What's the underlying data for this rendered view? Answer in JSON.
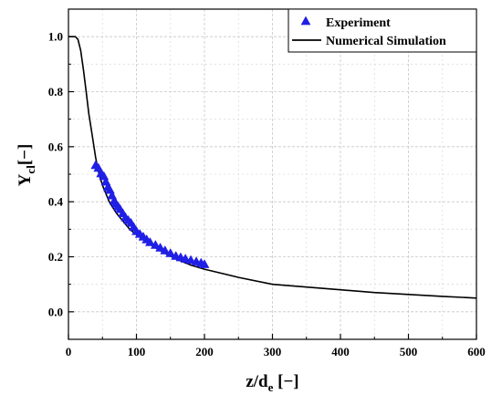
{
  "chart_data": {
    "type": "scatter",
    "xlabel": {
      "main": "z/d",
      "sub": "e",
      "unit": " [−]"
    },
    "ylabel": {
      "main": "Y",
      "sub": "cl",
      "unit": "[−]"
    },
    "xlim": [
      0,
      600
    ],
    "ylim": [
      -0.1,
      1.1
    ],
    "x_ticks": [
      "0",
      "100",
      "200",
      "300",
      "400",
      "500",
      "600"
    ],
    "y_ticks": [
      "0.0",
      "0.2",
      "0.4",
      "0.6",
      "0.8",
      "1.0"
    ],
    "grid": true,
    "minor_grid": true,
    "legend_position": "top-right",
    "series": [
      {
        "name": "Experiment",
        "kind": "marker",
        "color": "#1f1fe6",
        "x": [
          40,
          44,
          48,
          52,
          55,
          58,
          61,
          64,
          67,
          70,
          73,
          76,
          80,
          84,
          88,
          92,
          96,
          100,
          105,
          110,
          115,
          120,
          128,
          135,
          142,
          150,
          158,
          165,
          172,
          180,
          188,
          195,
          200
        ],
        "y": [
          0.53,
          0.52,
          0.5,
          0.49,
          0.47,
          0.45,
          0.44,
          0.42,
          0.4,
          0.39,
          0.38,
          0.37,
          0.355,
          0.34,
          0.33,
          0.32,
          0.305,
          0.29,
          0.28,
          0.27,
          0.26,
          0.25,
          0.24,
          0.23,
          0.22,
          0.21,
          0.2,
          0.195,
          0.19,
          0.185,
          0.18,
          0.175,
          0.17
        ]
      },
      {
        "name": "Numerical Simulation",
        "kind": "line",
        "color": "#000000",
        "x": [
          0,
          10,
          14,
          18,
          22,
          26,
          30,
          35,
          40,
          45,
          50,
          60,
          70,
          80,
          90,
          100,
          120,
          140,
          160,
          180,
          200,
          250,
          300,
          350,
          400,
          450,
          500,
          550,
          600
        ],
        "y": [
          1.0,
          1.0,
          0.99,
          0.95,
          0.88,
          0.8,
          0.72,
          0.64,
          0.56,
          0.5,
          0.46,
          0.4,
          0.36,
          0.33,
          0.3,
          0.28,
          0.245,
          0.215,
          0.19,
          0.17,
          0.155,
          0.125,
          0.1,
          0.09,
          0.08,
          0.07,
          0.063,
          0.056,
          0.05
        ]
      }
    ]
  }
}
